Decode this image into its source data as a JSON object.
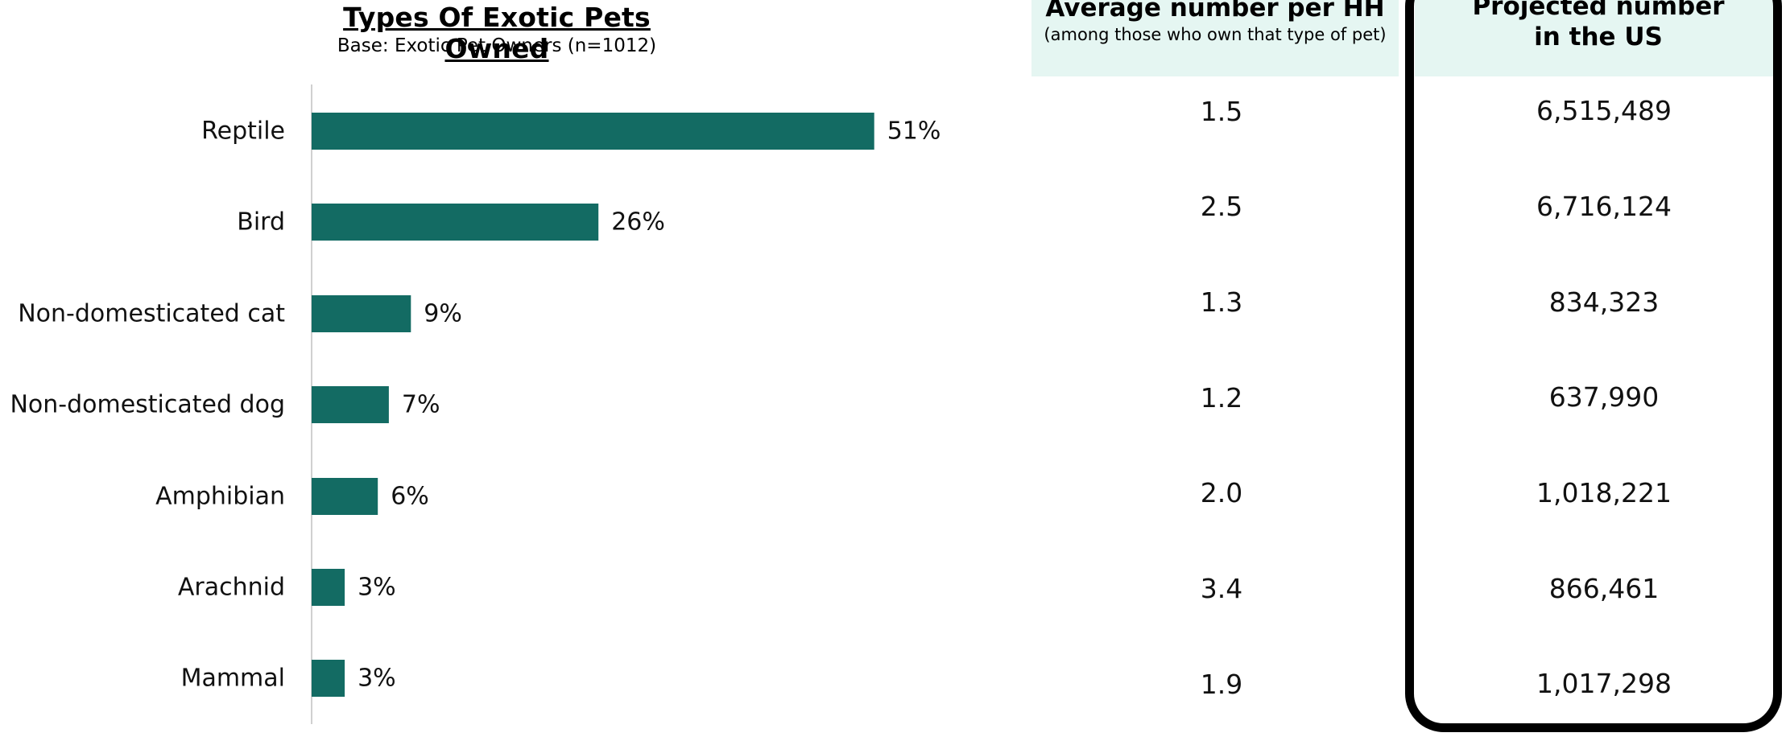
{
  "chart_data": {
    "type": "bar",
    "orientation": "horizontal",
    "title": "Types Of Exotic Pets Owned",
    "subtitle": "Base: Exotic Pet Owners (n=1012)",
    "categories": [
      "Reptile",
      "Bird",
      "Non-domesticated cat",
      "Non-domesticated dog",
      "Amphibian",
      "Arachnid",
      "Mammal"
    ],
    "values": [
      51,
      26,
      9,
      7,
      6,
      3,
      3
    ],
    "value_labels": [
      "51%",
      "26%",
      "9%",
      "7%",
      "6%",
      "3%",
      "3%"
    ],
    "xlim": [
      0,
      60
    ],
    "bar_color": "#136b63",
    "grid": false
  },
  "table": {
    "avg_header": "Average number per HH",
    "avg_subheader": "(among those who own that type of pet)",
    "proj_header_line1": "Projected number",
    "proj_header_line2": "in the US",
    "header_bg": "#e5f6f2",
    "avg_values": [
      "1.5",
      "2.5",
      "1.3",
      "1.2",
      "2.0",
      "3.4",
      "1.9"
    ],
    "projected_values": [
      "6,515,489",
      "6,716,124",
      "834,323",
      "637,990",
      "1,018,221",
      "866,461",
      "1,017,298"
    ]
  }
}
